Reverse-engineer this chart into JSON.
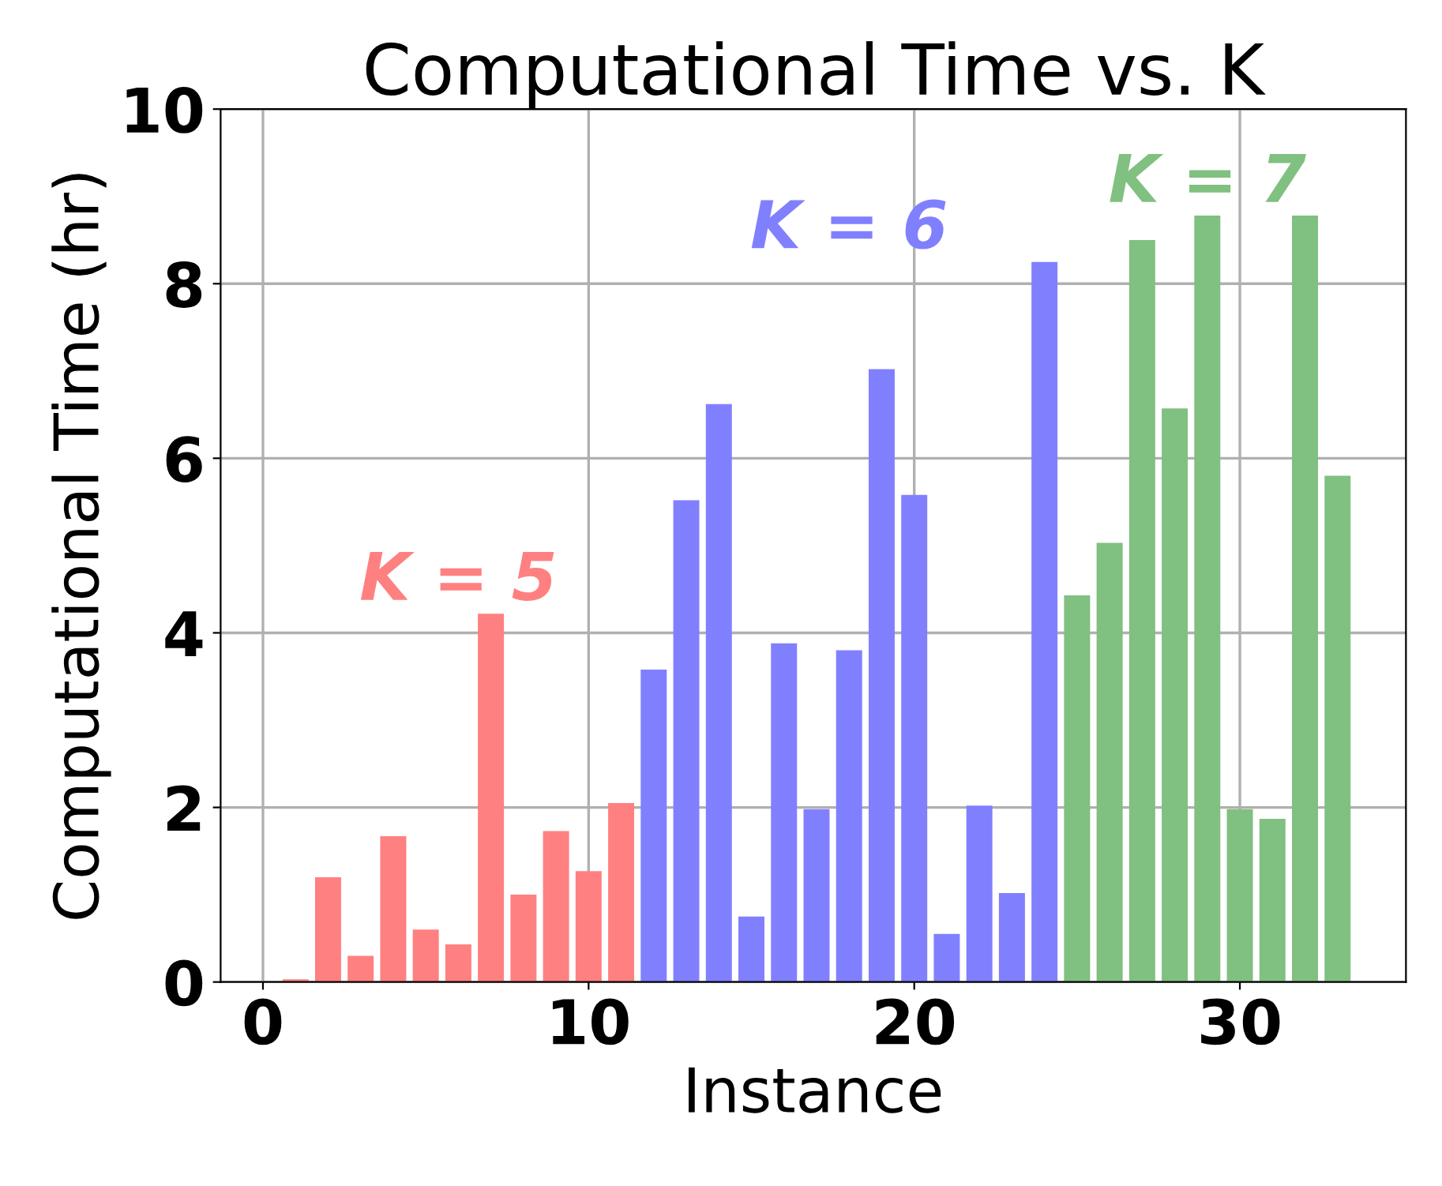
{
  "chart_data": {
    "type": "bar",
    "title": "Computational Time vs. K",
    "xlabel": "Instance",
    "ylabel": "Computational Time (hr)",
    "series": [
      {
        "name": "K = 5",
        "color": "#ff8080",
        "x": [
          1,
          2,
          3,
          4,
          5,
          6,
          7,
          8,
          9,
          10,
          11
        ],
        "values": [
          0.03,
          1.2,
          0.3,
          1.67,
          0.6,
          0.43,
          4.22,
          1.0,
          1.73,
          1.27,
          2.05
        ]
      },
      {
        "name": "K = 6",
        "color": "#8080ff",
        "x": [
          12,
          13,
          14,
          15,
          16,
          17,
          18,
          19,
          20,
          21,
          22,
          23,
          24
        ],
        "values": [
          3.58,
          5.52,
          6.62,
          0.75,
          3.88,
          1.98,
          3.8,
          7.02,
          5.58,
          0.55,
          2.02,
          1.02,
          8.25
        ]
      },
      {
        "name": "K = 7",
        "color": "#80c080",
        "x": [
          25,
          26,
          27,
          28,
          29,
          30,
          31,
          32,
          33
        ],
        "values": [
          4.43,
          5.03,
          8.5,
          6.57,
          8.78,
          1.98,
          1.87,
          8.78,
          5.8
        ]
      }
    ],
    "xlim": [
      -1.3,
      35.1
    ],
    "xticks": [
      0,
      10,
      20,
      30
    ],
    "ylim": [
      0,
      10
    ],
    "yticks": [
      0,
      2,
      4,
      6,
      8,
      10
    ],
    "grid": true
  }
}
